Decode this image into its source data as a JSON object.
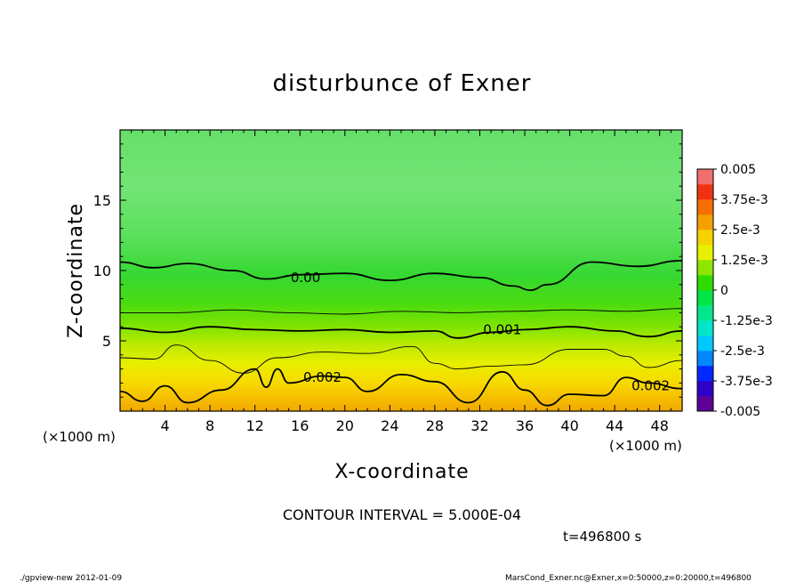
{
  "chart_data": {
    "type": "heatmap",
    "title": "disturbunce of Exner",
    "xlabel": "X-coordinate",
    "ylabel": "Z-coordinate",
    "x_unit": "(×1000 m)",
    "y_unit": "(×1000 m)",
    "xlim": [
      0,
      50
    ],
    "ylim": [
      0,
      20
    ],
    "x_ticks": [
      4,
      8,
      12,
      16,
      20,
      24,
      28,
      32,
      36,
      40,
      44,
      48
    ],
    "y_ticks": [
      5,
      10,
      15
    ],
    "colorbar": {
      "levels": [
        -0.005,
        -0.00375,
        -0.0025,
        -0.00125,
        0,
        0.00125,
        0.0025,
        0.00375,
        0.005
      ],
      "labels": [
        "0.005",
        "3.75e-3",
        "2.5e-3",
        "1.25e-3",
        "0",
        "-1.25e-3",
        "-2.5e-3",
        "-3.75e-3",
        "-0.005"
      ]
    },
    "contours": [
      {
        "level": "0.00",
        "x": [
          0,
          3,
          6,
          10,
          13,
          16,
          20,
          24,
          28,
          32,
          35,
          36.5,
          38,
          42,
          46,
          50
        ],
        "z": [
          10.6,
          10.2,
          10.5,
          10.0,
          9.4,
          9.7,
          9.8,
          9.3,
          9.8,
          9.5,
          8.9,
          8.6,
          9.0,
          10.6,
          10.3,
          10.7
        ]
      },
      {
        "level": "0.0005",
        "x": [
          0,
          5,
          10,
          15,
          20,
          25,
          30,
          35,
          40,
          45,
          50
        ],
        "z": [
          7.0,
          7.0,
          7.2,
          7.0,
          6.9,
          7.1,
          7.0,
          7.1,
          7.2,
          7.1,
          7.3
        ]
      },
      {
        "level": "0.001",
        "x": [
          0,
          4,
          8,
          12,
          16,
          20,
          24,
          28,
          30,
          33,
          36,
          40,
          44,
          47,
          50
        ],
        "z": [
          5.9,
          5.6,
          6.0,
          5.8,
          5.7,
          5.8,
          5.6,
          5.7,
          5.2,
          5.6,
          5.8,
          6.0,
          5.7,
          5.3,
          5.7
        ]
      },
      {
        "level": "0.0015",
        "x": [
          0,
          3,
          5,
          8,
          11,
          14,
          18,
          22,
          26,
          28,
          30,
          33,
          36,
          40,
          43,
          45,
          47,
          50
        ],
        "z": [
          3.8,
          3.7,
          4.7,
          3.6,
          2.7,
          3.8,
          4.2,
          4.1,
          4.6,
          3.4,
          3.0,
          3.2,
          3.3,
          4.4,
          4.4,
          3.9,
          3.1,
          3.6
        ]
      },
      {
        "level": "0.002",
        "x": [
          0,
          2,
          4,
          6,
          9,
          12,
          13,
          14,
          15,
          18,
          20,
          22,
          25,
          28,
          31,
          34,
          36,
          38,
          40,
          43,
          45,
          47,
          50
        ],
        "z": [
          1.4,
          0.7,
          1.8,
          0.6,
          1.5,
          3.0,
          1.7,
          3.0,
          2.0,
          2.5,
          2.4,
          1.4,
          2.6,
          2.1,
          0.6,
          2.8,
          1.5,
          0.4,
          1.2,
          1.1,
          2.4,
          2.0,
          1.6
        ]
      }
    ],
    "contour_labels": [
      {
        "text": "0.00",
        "x": 16.5,
        "z": 9.5
      },
      {
        "text": "0.001",
        "x": 34.0,
        "z": 5.8
      },
      {
        "text": "0.002",
        "x": 18.0,
        "z": 2.4
      },
      {
        "text": "0.002",
        "x": 47.2,
        "z": 1.8
      }
    ],
    "contour_interval": "CONTOUR INTERVAL = 5.000E-04",
    "time": "t=496800 s"
  },
  "footer": {
    "left": "./gpview-new  2012-01-09",
    "right": "MarsCond_Exner.nc@Exner,x=0:50000,z=0:20000,t=496800"
  },
  "colors": {
    "band_low": "#F0A000",
    "band_high": "#52DD4F",
    "contour": "#000000"
  }
}
